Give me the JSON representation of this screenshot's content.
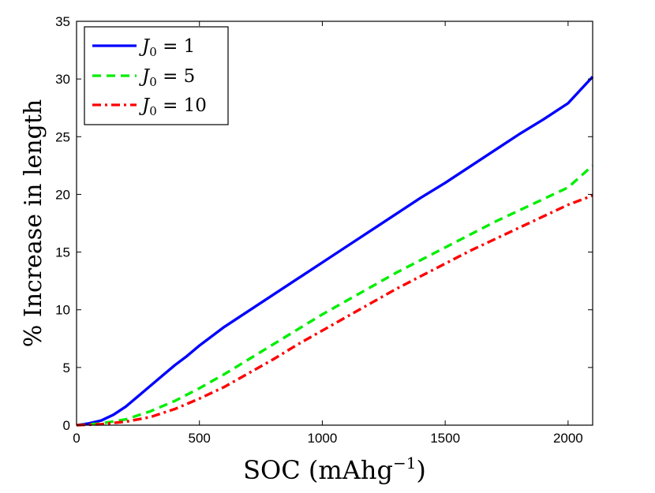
{
  "chart_data": {
    "type": "line",
    "title": "",
    "xlabel": "SOC (mAhg",
    "xlabel_sup": "−1",
    "xlabel_close": ")",
    "ylabel": "% Increase in length",
    "xlim": [
      0,
      2100
    ],
    "ylim": [
      0,
      35
    ],
    "xticks": [
      0,
      500,
      1000,
      1500,
      2000
    ],
    "yticks": [
      0,
      5,
      10,
      15,
      20,
      25,
      30,
      35
    ],
    "grid": false,
    "legend_position": "top-left",
    "series": [
      {
        "name": "J0 = 1",
        "legend_label": "J",
        "legend_sub": "0",
        "legend_value": " = 1",
        "color": "#0000ff",
        "style": "solid",
        "x": [
          0,
          50,
          100,
          150,
          200,
          250,
          300,
          350,
          400,
          450,
          500,
          550,
          600,
          700,
          800,
          900,
          1000,
          1100,
          1200,
          1300,
          1400,
          1500,
          1600,
          1700,
          1800,
          1900,
          2000,
          2100
        ],
        "y": [
          0,
          0.15,
          0.4,
          0.9,
          1.6,
          2.5,
          3.4,
          4.3,
          5.2,
          6.0,
          6.9,
          7.7,
          8.5,
          9.9,
          11.3,
          12.7,
          14.1,
          15.5,
          16.9,
          18.3,
          19.7,
          21.0,
          22.4,
          23.8,
          25.2,
          26.5,
          27.9,
          30.2
        ]
      },
      {
        "name": "J0 = 5",
        "legend_label": "J",
        "legend_sub": "0",
        "legend_value": " = 5",
        "color": "#00ee00",
        "style": "dashed",
        "x": [
          0,
          100,
          200,
          300,
          400,
          500,
          600,
          700,
          800,
          900,
          1000,
          1100,
          1200,
          1300,
          1400,
          1500,
          1600,
          1700,
          1800,
          1900,
          2000,
          2100
        ],
        "y": [
          0,
          0.15,
          0.5,
          1.2,
          2.1,
          3.2,
          4.4,
          5.7,
          7.0,
          8.3,
          9.6,
          10.8,
          12.0,
          13.2,
          14.3,
          15.4,
          16.5,
          17.6,
          18.6,
          19.6,
          20.6,
          22.5
        ]
      },
      {
        "name": "J0 = 10",
        "legend_label": "J",
        "legend_sub": "0",
        "legend_value": " = 10",
        "color": "#ff0000",
        "style": "dashdot",
        "x": [
          0,
          100,
          200,
          300,
          400,
          500,
          600,
          700,
          800,
          900,
          1000,
          1100,
          1200,
          1300,
          1400,
          1500,
          1600,
          1700,
          1800,
          1900,
          2000,
          2100
        ],
        "y": [
          0,
          0.08,
          0.3,
          0.7,
          1.4,
          2.3,
          3.3,
          4.5,
          5.7,
          7.0,
          8.2,
          9.4,
          10.6,
          11.8,
          12.9,
          14.0,
          15.1,
          16.1,
          17.1,
          18.1,
          19.1,
          19.9
        ]
      }
    ]
  }
}
